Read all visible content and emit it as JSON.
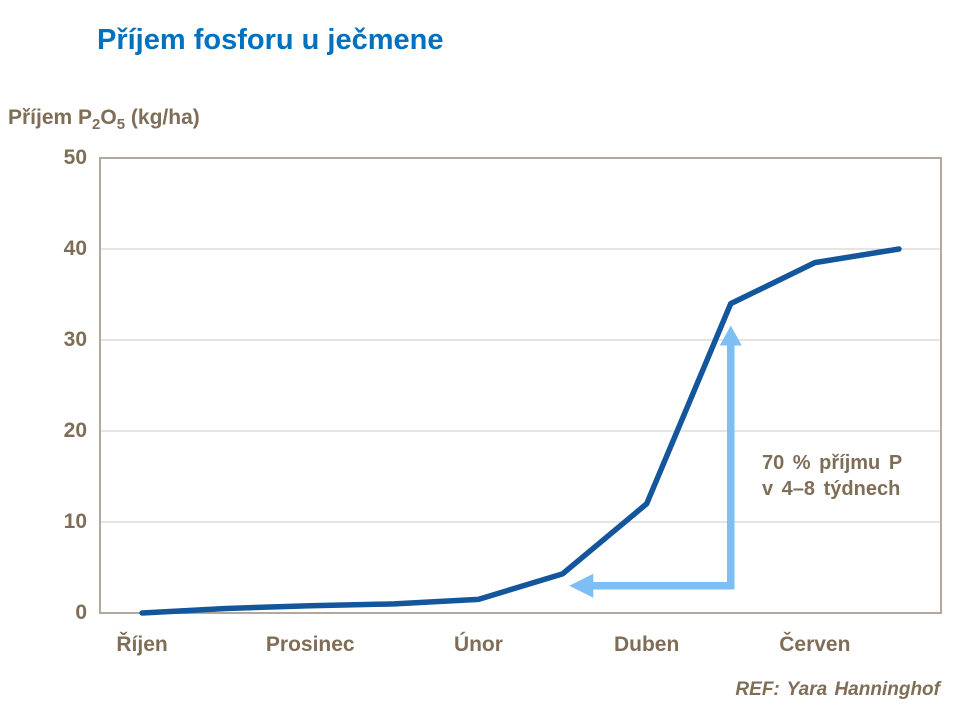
{
  "title": "Příjem fosforu u ječmene",
  "y_axis_title": {
    "prefix": "Příjem P",
    "sub1": "2",
    "mid": "O",
    "sub2": "5",
    "suffix": " (kg/ha)"
  },
  "annotation": {
    "line1": "70 % příjmu P",
    "line2": "v 4–8 týdnech"
  },
  "ref_label": "REF: Yara Hanninghof",
  "colors": {
    "title": "#0070C0",
    "axis_text": "#7F6E57",
    "line": "#14569B",
    "arrow": "#7DBEF5",
    "border": "#B2A89D",
    "gridline": "#D0CAC2",
    "background": "#FFFFFF"
  },
  "chart_data": {
    "type": "line",
    "title": "Příjem fosforu u ječmene",
    "ylabel": "Příjem P2O5 (kg/ha)",
    "xlabel": "",
    "ylim": [
      0,
      50
    ],
    "yticks": [
      0,
      10,
      20,
      30,
      40,
      50
    ],
    "grid": "horizontal",
    "legend": "none",
    "x_unit": "month (0 = Říjen)",
    "x_range": [
      -0.5,
      9.5
    ],
    "x_tick_labels": [
      {
        "label": "Říjen",
        "month": 0
      },
      {
        "label": "Prosinec",
        "month": 2
      },
      {
        "label": "Únor",
        "month": 4
      },
      {
        "label": "Duben",
        "month": 6
      },
      {
        "label": "Červen",
        "month": 8
      }
    ],
    "series": [
      {
        "name": "Příjem P2O5 (kg/ha)",
        "x": [
          0,
          1,
          2,
          3,
          4,
          5,
          6,
          7,
          8,
          9
        ],
        "values": [
          0,
          0.5,
          0.8,
          1.0,
          1.5,
          4.3,
          12,
          34,
          38.5,
          40
        ]
      }
    ],
    "annotation_arrow": {
      "label": "70 % příjmu P v 4–8 týdnech",
      "vertical_x_month": 7,
      "top_value": 31.6,
      "bottom_value": 3,
      "left_tip_month": 5.08
    }
  }
}
